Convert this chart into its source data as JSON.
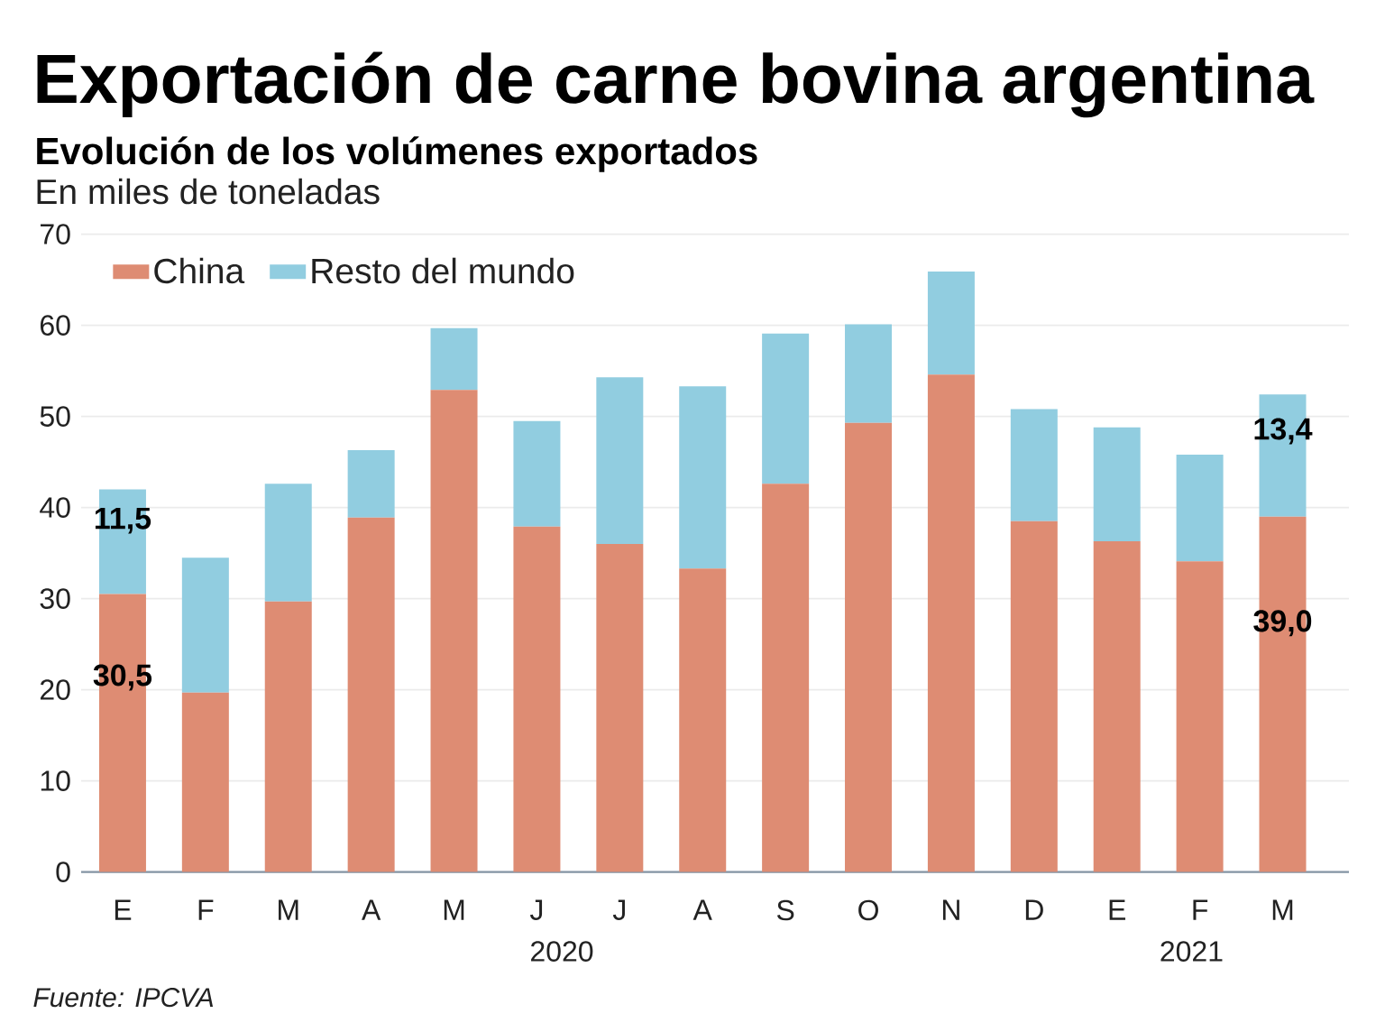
{
  "chart_data": {
    "type": "bar",
    "title": "Exportación de carne bovina argentina",
    "subtitle": "Evolución de los volúmenes exportados",
    "ylabel": "En miles de toneladas",
    "annotations": [
      "2020",
      "2021",
      "Fuente: IPCVA"
    ],
    "categories": [
      "E",
      "F",
      "M",
      "A",
      "M",
      "J",
      "J",
      "A",
      "S",
      "O",
      "N",
      "D",
      "E",
      "F",
      "M"
    ],
    "series": [
      {
        "name": "China",
        "color": "#de8c73",
        "values": [
          30.5,
          19.7,
          29.7,
          38.9,
          52.9,
          37.9,
          36.0,
          33.3,
          42.6,
          49.3,
          54.6,
          38.5,
          36.3,
          34.1,
          39.0
        ],
        "value_labels": [
          "30,5",
          null,
          null,
          null,
          null,
          null,
          null,
          null,
          null,
          null,
          null,
          null,
          null,
          null,
          "39,0"
        ]
      },
      {
        "name": "Resto del mundo",
        "color": "#91cde0",
        "values": [
          11.5,
          14.8,
          12.9,
          7.4,
          6.8,
          11.6,
          18.3,
          20.0,
          16.5,
          10.8,
          11.3,
          12.3,
          12.5,
          11.7,
          13.4
        ],
        "value_labels": [
          "11,5",
          null,
          null,
          null,
          null,
          null,
          null,
          null,
          null,
          null,
          null,
          null,
          null,
          null,
          "13,4"
        ]
      }
    ],
    "stacked": true,
    "ylim": [
      0,
      70
    ],
    "yticks": [
      0,
      10,
      20,
      30,
      40,
      50,
      60,
      70
    ],
    "grid": "y",
    "legend": "top left"
  }
}
